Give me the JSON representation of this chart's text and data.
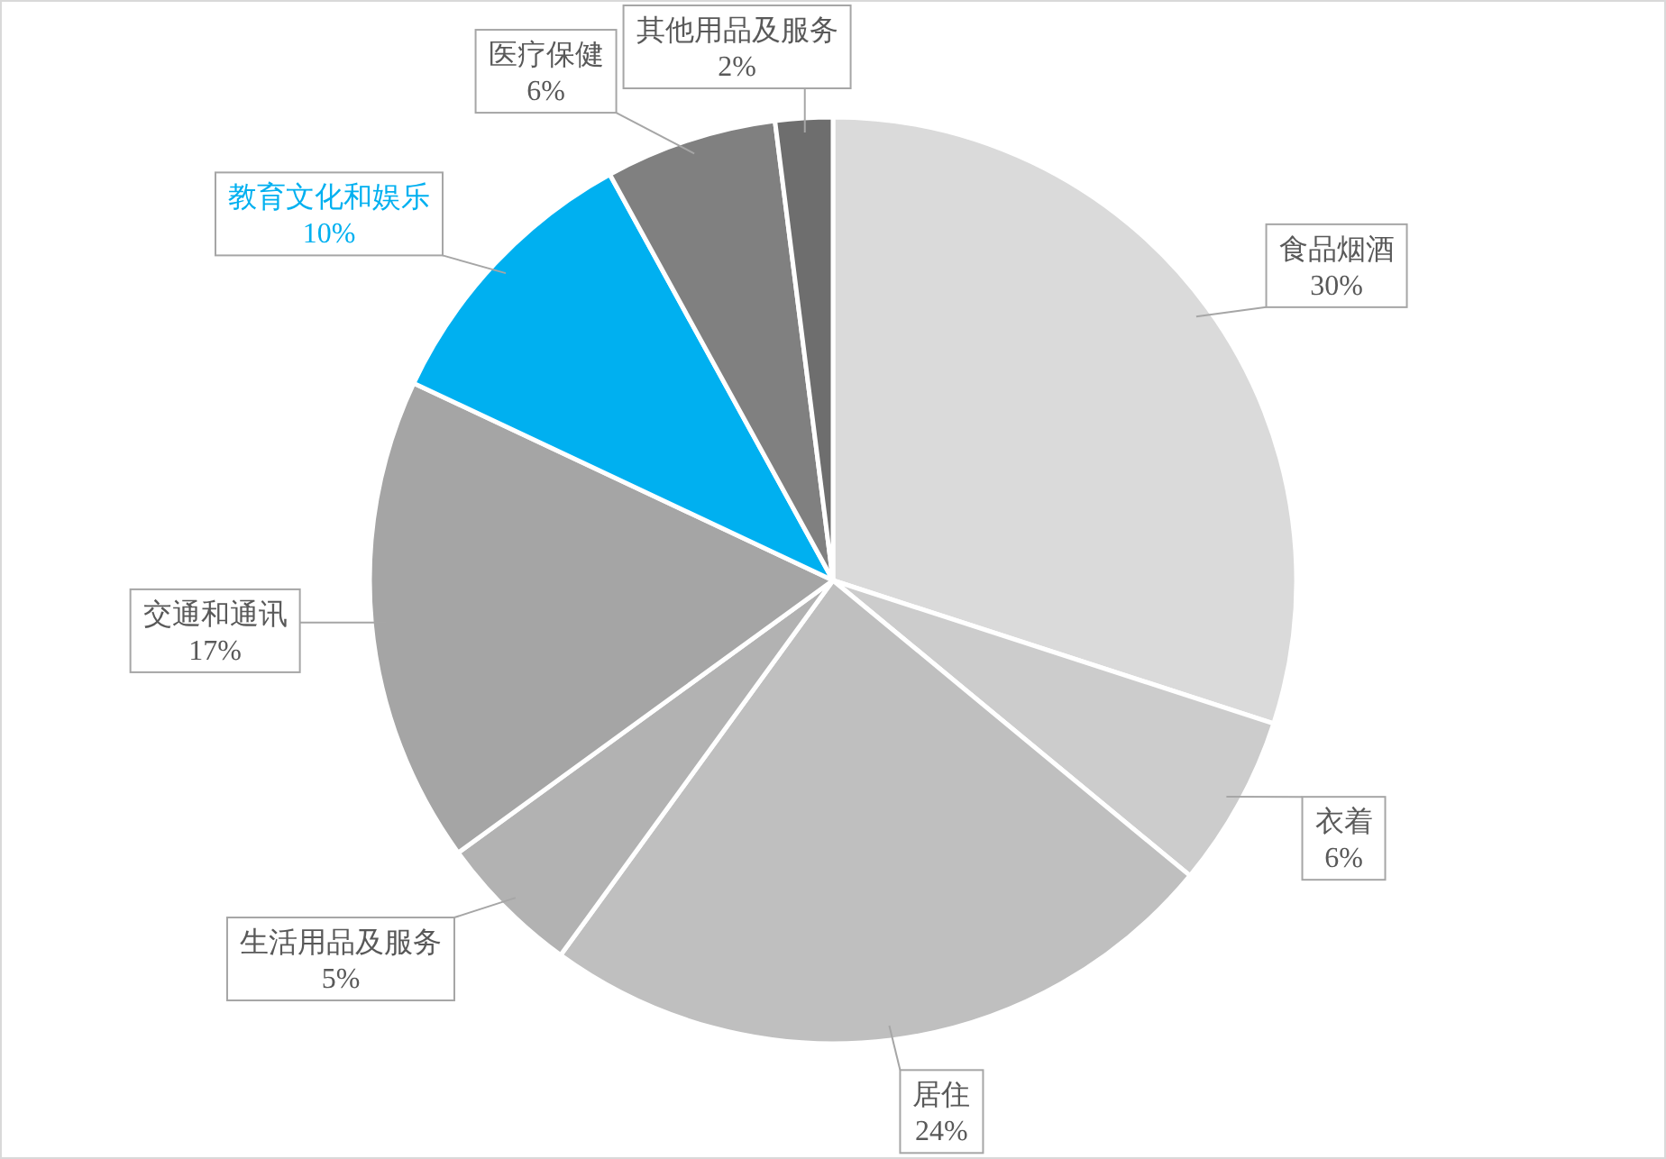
{
  "chart_data": {
    "type": "pie",
    "categories": [
      "食品烟酒",
      "衣着",
      "居住",
      "生活用品及服务",
      "交通和通讯",
      "教育文化和娱乐",
      "医疗保健",
      "其他用品及服务"
    ],
    "values": [
      30,
      6,
      24,
      5,
      17,
      10,
      6,
      2
    ],
    "colors": [
      "#dadada",
      "#cccccc",
      "#bfbfbf",
      "#b2b2b2",
      "#a5a5a5",
      "#00b0f0",
      "#808080",
      "#6e6e6e"
    ],
    "value_labels": [
      "30%",
      "6%",
      "24%",
      "5%",
      "17%",
      "10%",
      "6%",
      "2%"
    ]
  }
}
